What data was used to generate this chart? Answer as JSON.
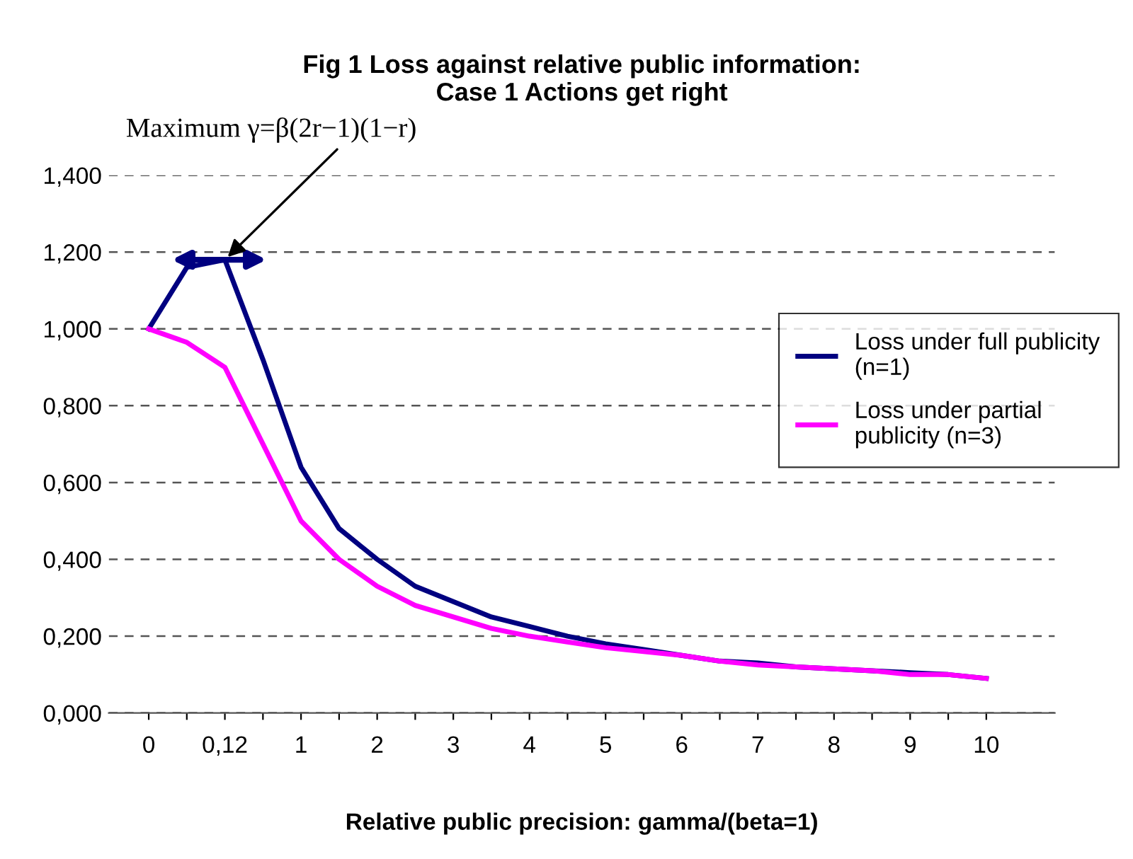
{
  "chart_data": {
    "type": "line",
    "title": "Fig 1 Loss against relative public information:\nCase 1 Actions get right",
    "xlabel": "Relative public precision: gamma/(beta=1)",
    "categories": [
      "0",
      null,
      "0,12",
      null,
      "1",
      null,
      "2",
      null,
      "3",
      null,
      "4",
      null,
      "5",
      null,
      "6",
      null,
      "7",
      null,
      "8",
      null,
      "9",
      null,
      "10"
    ],
    "series": [
      {
        "name": "Loss under full publicity\n(n=1)",
        "color": "#000080",
        "values": [
          1.0,
          1.16,
          1.18,
          0.92,
          0.64,
          0.48,
          0.4,
          0.33,
          0.29,
          0.25,
          0.225,
          0.2,
          0.18,
          0.165,
          0.15,
          0.135,
          0.13,
          0.12,
          0.115,
          0.11,
          0.105,
          0.1,
          0.09
        ]
      },
      {
        "name": "Loss under partial\npublicity (n=3)",
        "color": "#ff00ff",
        "values": [
          1.0,
          0.965,
          0.9,
          0.7,
          0.5,
          0.4,
          0.33,
          0.28,
          0.25,
          0.22,
          0.2,
          0.185,
          0.17,
          0.16,
          0.15,
          0.135,
          0.125,
          0.12,
          0.115,
          0.11,
          0.1,
          0.1,
          0.09
        ]
      }
    ],
    "ylim": [
      0,
      1.4
    ],
    "yticks": [
      {
        "value": 0,
        "label": "0,000"
      },
      {
        "value": 0.2,
        "label": "0,200"
      },
      {
        "value": 0.4,
        "label": "0,400"
      },
      {
        "value": 0.6,
        "label": "0,600"
      },
      {
        "value": 0.8,
        "label": "0,800"
      },
      {
        "value": 1.0,
        "label": "1,000"
      },
      {
        "value": 1.2,
        "label": "1,200"
      },
      {
        "value": 1.4,
        "label": "1,400"
      }
    ],
    "annotations": [
      {
        "text": "Maximum γ=β(2r−1)(1−r)",
        "x": "0,12",
        "y": 1.18
      }
    ],
    "grid": "y",
    "legend": "right",
    "marker": "none",
    "line_style": "solid"
  }
}
